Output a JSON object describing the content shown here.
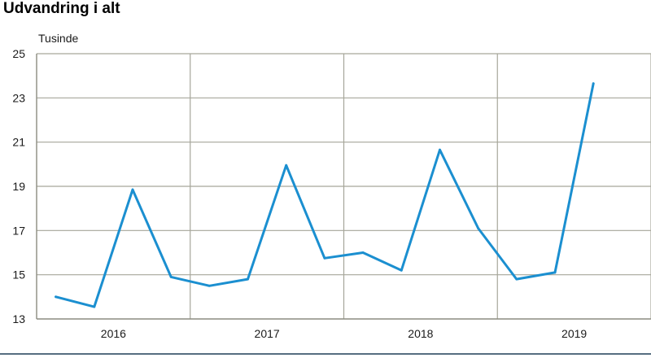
{
  "chart_data": {
    "type": "line",
    "title": "Udvandring i alt",
    "ylabel": "Tusinde",
    "xlabel": "",
    "ylim": [
      13,
      25
    ],
    "yticks": [
      13,
      15,
      17,
      19,
      21,
      23,
      25
    ],
    "year_labels": [
      "2016",
      "2017",
      "2018",
      "2019"
    ],
    "grid": true,
    "legend": "none",
    "colors": {
      "line": "#1b8fd0",
      "grid": "#a6a69a",
      "axis": "#8c8c80",
      "bottom_rule": "#1f3f56"
    },
    "series": [
      {
        "x": [
          "2016Q1",
          "2016Q2",
          "2016Q3",
          "2016Q4",
          "2017Q1",
          "2017Q2",
          "2017Q3",
          "2017Q4",
          "2018Q1",
          "2018Q2",
          "2018Q3",
          "2018Q4",
          "2019Q1",
          "2019Q2",
          "2019Q3"
        ],
        "values": [
          14.0,
          13.55,
          18.85,
          14.9,
          14.5,
          14.8,
          19.95,
          15.75,
          16.0,
          15.2,
          20.65,
          17.1,
          14.8,
          15.1,
          23.65
        ]
      }
    ]
  }
}
